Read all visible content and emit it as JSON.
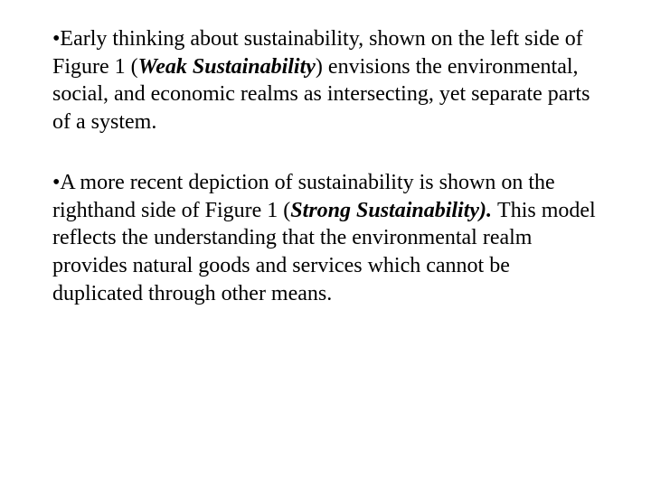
{
  "textColor": "#000000",
  "backgroundColor": "#ffffff",
  "fontSize": 24,
  "bullets": [
    {
      "marker": "•",
      "segments": [
        {
          "text": "Early thinking about sustainability, shown on the left side of Figure 1 (",
          "style": "normal"
        },
        {
          "text": "Weak Sustainability",
          "style": "italic-bold"
        },
        {
          "text": ") envisions the environmental, social, and economic realms as intersecting, yet separate parts of a system.",
          "style": "normal"
        }
      ]
    },
    {
      "marker": "•",
      "segments": [
        {
          "text": "A more recent depiction of sustainability is shown on the righthand side of Figure 1 (",
          "style": "normal"
        },
        {
          "text": "Strong Sustainability). ",
          "style": "italic-bold"
        },
        {
          "text": "This model reflects the understanding that the environmental realm provides natural goods and services which cannot be duplicated through other means.",
          "style": "normal"
        }
      ]
    }
  ]
}
